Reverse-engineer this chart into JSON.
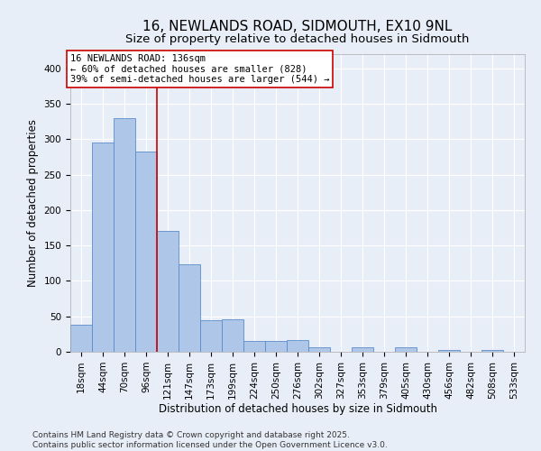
{
  "title_line1": "16, NEWLANDS ROAD, SIDMOUTH, EX10 9NL",
  "title_line2": "Size of property relative to detached houses in Sidmouth",
  "xlabel": "Distribution of detached houses by size in Sidmouth",
  "ylabel": "Number of detached properties",
  "categories": [
    "18sqm",
    "44sqm",
    "70sqm",
    "96sqm",
    "121sqm",
    "147sqm",
    "173sqm",
    "199sqm",
    "224sqm",
    "250sqm",
    "276sqm",
    "302sqm",
    "327sqm",
    "353sqm",
    "379sqm",
    "405sqm",
    "430sqm",
    "456sqm",
    "482sqm",
    "508sqm",
    "533sqm"
  ],
  "values": [
    38,
    295,
    330,
    282,
    170,
    123,
    44,
    46,
    15,
    15,
    16,
    6,
    0,
    6,
    0,
    7,
    0,
    2,
    0,
    2,
    0
  ],
  "bar_color": "#aec6e8",
  "bar_edge_color": "#5b8dc8",
  "vline_color": "#cc0000",
  "annotation_text": "16 NEWLANDS ROAD: 136sqm\n← 60% of detached houses are smaller (828)\n39% of semi-detached houses are larger (544) →",
  "annotation_box_color": "#ffffff",
  "annotation_box_edge": "#cc0000",
  "ylim": [
    0,
    420
  ],
  "yticks": [
    0,
    50,
    100,
    150,
    200,
    250,
    300,
    350,
    400
  ],
  "footer": "Contains HM Land Registry data © Crown copyright and database right 2025.\nContains public sector information licensed under the Open Government Licence v3.0.",
  "background_color": "#e8eef7",
  "plot_background": "#e8eef7",
  "grid_color": "#ffffff",
  "title_fontsize": 11,
  "subtitle_fontsize": 9.5,
  "tick_fontsize": 7.5,
  "label_fontsize": 8.5,
  "footer_fontsize": 6.5,
  "annotation_fontsize": 7.5
}
